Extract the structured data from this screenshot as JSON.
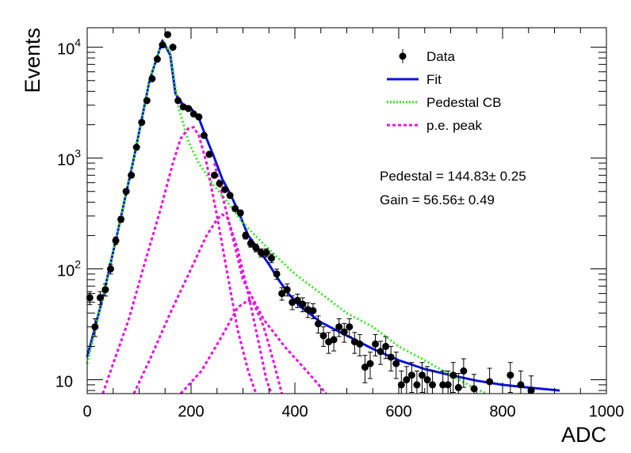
{
  "chart_data": {
    "type": "scatter",
    "xlabel": "ADC",
    "ylabel": "Events",
    "xlim": [
      0,
      1000
    ],
    "ylim": [
      7.5,
      15000
    ],
    "y_scale": "log",
    "x_ticks": [
      0,
      200,
      400,
      600,
      800,
      1000
    ],
    "x_tick_labels": [
      "0",
      "200",
      "400",
      "600",
      "800",
      "1000"
    ],
    "y_ticks": [
      10,
      100,
      1000,
      10000
    ],
    "y_tick_labels": [
      {
        "base": "10",
        "exp": ""
      },
      {
        "base": "10",
        "exp": "2"
      },
      {
        "base": "10",
        "exp": "3"
      },
      {
        "base": "10",
        "exp": "4"
      }
    ],
    "legend": {
      "position": "top-right",
      "entries": [
        {
          "label": "Data",
          "style": "marker",
          "color": "#000000"
        },
        {
          "label": "Fit",
          "style": "solid",
          "color": "#0a14d6"
        },
        {
          "label": "Pedestal CB",
          "style": "dotted",
          "color": "#33e81f"
        },
        {
          "label": "p.e. peak",
          "style": "dashed",
          "color": "#e814e0"
        }
      ]
    },
    "annotations": [
      {
        "prefix": "Pedestal = 144.83",
        "pm": "±",
        "suffix": " 0.25"
      },
      {
        "prefix": "Gain = 56.56",
        "pm": "±",
        "suffix": " 0.49"
      }
    ],
    "fit_params": {
      "pedestal": 144.83,
      "gain": 56.56
    },
    "series": [
      {
        "name": "Data",
        "color": "#000000",
        "points": [
          [
            5,
            55
          ],
          [
            15,
            30
          ],
          [
            25,
            55
          ],
          [
            35,
            65
          ],
          [
            45,
            100
          ],
          [
            55,
            180
          ],
          [
            65,
            280
          ],
          [
            75,
            500
          ],
          [
            85,
            700
          ],
          [
            95,
            1250
          ],
          [
            105,
            2100
          ],
          [
            115,
            3300
          ],
          [
            125,
            5200
          ],
          [
            135,
            7800
          ],
          [
            145,
            10500
          ],
          [
            155,
            13000
          ],
          [
            165,
            10000
          ],
          [
            175,
            3300
          ],
          [
            185,
            2900
          ],
          [
            195,
            2800
          ],
          [
            205,
            2500
          ],
          [
            215,
            2350
          ],
          [
            225,
            1600
          ],
          [
            235,
            1080
          ],
          [
            245,
            700
          ],
          [
            255,
            590
          ],
          [
            265,
            520
          ],
          [
            275,
            460
          ],
          [
            285,
            350
          ],
          [
            295,
            320
          ],
          [
            305,
            200
          ],
          [
            315,
            170
          ],
          [
            325,
            155
          ],
          [
            335,
            140
          ],
          [
            345,
            140
          ],
          [
            355,
            125
          ],
          [
            365,
            90
          ],
          [
            375,
            60
          ],
          [
            385,
            65
          ],
          [
            395,
            50
          ],
          [
            405,
            52
          ],
          [
            415,
            48
          ],
          [
            425,
            43
          ],
          [
            435,
            42
          ],
          [
            445,
            32
          ],
          [
            455,
            25
          ],
          [
            465,
            22
          ],
          [
            475,
            23
          ],
          [
            485,
            30
          ],
          [
            495,
            27
          ],
          [
            505,
            30
          ],
          [
            515,
            22
          ],
          [
            525,
            21
          ],
          [
            535,
            13
          ],
          [
            545,
            14
          ],
          [
            555,
            21
          ],
          [
            565,
            18
          ],
          [
            575,
            20
          ],
          [
            585,
            16
          ],
          [
            595,
            14
          ],
          [
            605,
            9
          ],
          [
            615,
            10
          ],
          [
            625,
            11
          ],
          [
            635,
            9
          ],
          [
            645,
            11
          ],
          [
            655,
            10
          ],
          [
            665,
            9
          ],
          [
            685,
            9
          ],
          [
            695,
            9
          ],
          [
            705,
            11
          ],
          [
            715,
            8.5
          ],
          [
            725,
            12
          ],
          [
            745,
            8.3
          ],
          [
            775,
            9.6
          ],
          [
            815,
            11
          ],
          [
            835,
            9
          ],
          [
            855,
            8
          ]
        ]
      },
      {
        "name": "Fit",
        "color": "#0a14d6",
        "points": [
          [
            0,
            16
          ],
          [
            30,
            55
          ],
          [
            60,
            230
          ],
          [
            90,
            1000
          ],
          [
            120,
            5000
          ],
          [
            145,
            11500
          ],
          [
            160,
            8500
          ],
          [
            170,
            3800
          ],
          [
            185,
            3000
          ],
          [
            200,
            2800
          ],
          [
            215,
            2300
          ],
          [
            230,
            1500
          ],
          [
            245,
            1000
          ],
          [
            260,
            650
          ],
          [
            275,
            480
          ],
          [
            290,
            340
          ],
          [
            310,
            200
          ],
          [
            330,
            150
          ],
          [
            350,
            110
          ],
          [
            370,
            78
          ],
          [
            390,
            58
          ],
          [
            410,
            46
          ],
          [
            450,
            33
          ],
          [
            500,
            25
          ],
          [
            550,
            19
          ],
          [
            600,
            15
          ],
          [
            650,
            12.5
          ],
          [
            700,
            11
          ],
          [
            750,
            9.8
          ],
          [
            800,
            9
          ],
          [
            850,
            8.5
          ],
          [
            910,
            8
          ]
        ]
      },
      {
        "name": "Pedestal CB",
        "color": "#33e81f",
        "points": [
          [
            0,
            14
          ],
          [
            30,
            55
          ],
          [
            60,
            230
          ],
          [
            90,
            1000
          ],
          [
            120,
            5000
          ],
          [
            145,
            11500
          ],
          [
            160,
            9000
          ],
          [
            175,
            3000
          ],
          [
            195,
            1400
          ],
          [
            215,
            900
          ],
          [
            240,
            600
          ],
          [
            270,
            400
          ],
          [
            300,
            260
          ],
          [
            350,
            150
          ],
          [
            400,
            90
          ],
          [
            450,
            60
          ],
          [
            500,
            40
          ],
          [
            550,
            30
          ],
          [
            600,
            20
          ],
          [
            650,
            15
          ],
          [
            700,
            11
          ],
          [
            750,
            8.2
          ],
          [
            770,
            7.5
          ]
        ]
      },
      {
        "name": "p.e. peak (1)",
        "color": "#e814e0",
        "points": [
          [
            30,
            7.5
          ],
          [
            50,
            14
          ],
          [
            80,
            35
          ],
          [
            110,
            110
          ],
          [
            140,
            330
          ],
          [
            165,
            900
          ],
          [
            180,
            1500
          ],
          [
            195,
            1850
          ],
          [
            205,
            1900
          ],
          [
            215,
            1600
          ],
          [
            230,
            900
          ],
          [
            250,
            300
          ],
          [
            270,
            90
          ],
          [
            290,
            28
          ],
          [
            310,
            12
          ],
          [
            325,
            7.5
          ]
        ]
      },
      {
        "name": "p.e. peak (2)",
        "color": "#e814e0",
        "points": [
          [
            90,
            7.5
          ],
          [
            120,
            15
          ],
          [
            160,
            40
          ],
          [
            200,
            100
          ],
          [
            230,
            200
          ],
          [
            250,
            280
          ],
          [
            260,
            310
          ],
          [
            270,
            290
          ],
          [
            290,
            150
          ],
          [
            310,
            60
          ],
          [
            330,
            22
          ],
          [
            345,
            10
          ],
          [
            355,
            7.5
          ]
        ]
      },
      {
        "name": "p.e. peak (3)",
        "color": "#e814e0",
        "points": [
          [
            180,
            7.5
          ],
          [
            220,
            12
          ],
          [
            260,
            25
          ],
          [
            290,
            45
          ],
          [
            310,
            52
          ],
          [
            320,
            50
          ],
          [
            340,
            30
          ],
          [
            360,
            14
          ],
          [
            375,
            7.5
          ]
        ]
      },
      {
        "name": "p.e. peak tail",
        "color": "#e814e0",
        "points": [
          [
            245,
            900
          ],
          [
            270,
            300
          ],
          [
            300,
            80
          ],
          [
            340,
            35
          ],
          [
            380,
            20
          ],
          [
            430,
            11
          ],
          [
            460,
            7.5
          ]
        ]
      }
    ]
  }
}
